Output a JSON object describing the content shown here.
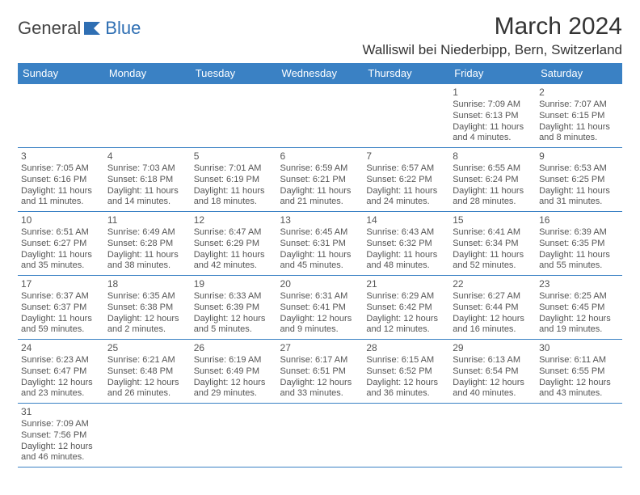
{
  "brand": {
    "part1": "General",
    "part2": "Blue"
  },
  "title": "March 2024",
  "location": "Walliswil bei Niederbipp, Bern, Switzerland",
  "colors": {
    "header_bg": "#3a81c4",
    "header_text": "#ffffff",
    "cell_border": "#3a81c4"
  },
  "day_headers": [
    "Sunday",
    "Monday",
    "Tuesday",
    "Wednesday",
    "Thursday",
    "Friday",
    "Saturday"
  ],
  "weeks": [
    [
      null,
      null,
      null,
      null,
      null,
      {
        "n": "1",
        "sr": "Sunrise: 7:09 AM",
        "ss": "Sunset: 6:13 PM",
        "dl": "Daylight: 11 hours and 4 minutes."
      },
      {
        "n": "2",
        "sr": "Sunrise: 7:07 AM",
        "ss": "Sunset: 6:15 PM",
        "dl": "Daylight: 11 hours and 8 minutes."
      }
    ],
    [
      {
        "n": "3",
        "sr": "Sunrise: 7:05 AM",
        "ss": "Sunset: 6:16 PM",
        "dl": "Daylight: 11 hours and 11 minutes."
      },
      {
        "n": "4",
        "sr": "Sunrise: 7:03 AM",
        "ss": "Sunset: 6:18 PM",
        "dl": "Daylight: 11 hours and 14 minutes."
      },
      {
        "n": "5",
        "sr": "Sunrise: 7:01 AM",
        "ss": "Sunset: 6:19 PM",
        "dl": "Daylight: 11 hours and 18 minutes."
      },
      {
        "n": "6",
        "sr": "Sunrise: 6:59 AM",
        "ss": "Sunset: 6:21 PM",
        "dl": "Daylight: 11 hours and 21 minutes."
      },
      {
        "n": "7",
        "sr": "Sunrise: 6:57 AM",
        "ss": "Sunset: 6:22 PM",
        "dl": "Daylight: 11 hours and 24 minutes."
      },
      {
        "n": "8",
        "sr": "Sunrise: 6:55 AM",
        "ss": "Sunset: 6:24 PM",
        "dl": "Daylight: 11 hours and 28 minutes."
      },
      {
        "n": "9",
        "sr": "Sunrise: 6:53 AM",
        "ss": "Sunset: 6:25 PM",
        "dl": "Daylight: 11 hours and 31 minutes."
      }
    ],
    [
      {
        "n": "10",
        "sr": "Sunrise: 6:51 AM",
        "ss": "Sunset: 6:27 PM",
        "dl": "Daylight: 11 hours and 35 minutes."
      },
      {
        "n": "11",
        "sr": "Sunrise: 6:49 AM",
        "ss": "Sunset: 6:28 PM",
        "dl": "Daylight: 11 hours and 38 minutes."
      },
      {
        "n": "12",
        "sr": "Sunrise: 6:47 AM",
        "ss": "Sunset: 6:29 PM",
        "dl": "Daylight: 11 hours and 42 minutes."
      },
      {
        "n": "13",
        "sr": "Sunrise: 6:45 AM",
        "ss": "Sunset: 6:31 PM",
        "dl": "Daylight: 11 hours and 45 minutes."
      },
      {
        "n": "14",
        "sr": "Sunrise: 6:43 AM",
        "ss": "Sunset: 6:32 PM",
        "dl": "Daylight: 11 hours and 48 minutes."
      },
      {
        "n": "15",
        "sr": "Sunrise: 6:41 AM",
        "ss": "Sunset: 6:34 PM",
        "dl": "Daylight: 11 hours and 52 minutes."
      },
      {
        "n": "16",
        "sr": "Sunrise: 6:39 AM",
        "ss": "Sunset: 6:35 PM",
        "dl": "Daylight: 11 hours and 55 minutes."
      }
    ],
    [
      {
        "n": "17",
        "sr": "Sunrise: 6:37 AM",
        "ss": "Sunset: 6:37 PM",
        "dl": "Daylight: 11 hours and 59 minutes."
      },
      {
        "n": "18",
        "sr": "Sunrise: 6:35 AM",
        "ss": "Sunset: 6:38 PM",
        "dl": "Daylight: 12 hours and 2 minutes."
      },
      {
        "n": "19",
        "sr": "Sunrise: 6:33 AM",
        "ss": "Sunset: 6:39 PM",
        "dl": "Daylight: 12 hours and 5 minutes."
      },
      {
        "n": "20",
        "sr": "Sunrise: 6:31 AM",
        "ss": "Sunset: 6:41 PM",
        "dl": "Daylight: 12 hours and 9 minutes."
      },
      {
        "n": "21",
        "sr": "Sunrise: 6:29 AM",
        "ss": "Sunset: 6:42 PM",
        "dl": "Daylight: 12 hours and 12 minutes."
      },
      {
        "n": "22",
        "sr": "Sunrise: 6:27 AM",
        "ss": "Sunset: 6:44 PM",
        "dl": "Daylight: 12 hours and 16 minutes."
      },
      {
        "n": "23",
        "sr": "Sunrise: 6:25 AM",
        "ss": "Sunset: 6:45 PM",
        "dl": "Daylight: 12 hours and 19 minutes."
      }
    ],
    [
      {
        "n": "24",
        "sr": "Sunrise: 6:23 AM",
        "ss": "Sunset: 6:47 PM",
        "dl": "Daylight: 12 hours and 23 minutes."
      },
      {
        "n": "25",
        "sr": "Sunrise: 6:21 AM",
        "ss": "Sunset: 6:48 PM",
        "dl": "Daylight: 12 hours and 26 minutes."
      },
      {
        "n": "26",
        "sr": "Sunrise: 6:19 AM",
        "ss": "Sunset: 6:49 PM",
        "dl": "Daylight: 12 hours and 29 minutes."
      },
      {
        "n": "27",
        "sr": "Sunrise: 6:17 AM",
        "ss": "Sunset: 6:51 PM",
        "dl": "Daylight: 12 hours and 33 minutes."
      },
      {
        "n": "28",
        "sr": "Sunrise: 6:15 AM",
        "ss": "Sunset: 6:52 PM",
        "dl": "Daylight: 12 hours and 36 minutes."
      },
      {
        "n": "29",
        "sr": "Sunrise: 6:13 AM",
        "ss": "Sunset: 6:54 PM",
        "dl": "Daylight: 12 hours and 40 minutes."
      },
      {
        "n": "30",
        "sr": "Sunrise: 6:11 AM",
        "ss": "Sunset: 6:55 PM",
        "dl": "Daylight: 12 hours and 43 minutes."
      }
    ],
    [
      {
        "n": "31",
        "sr": "Sunrise: 7:09 AM",
        "ss": "Sunset: 7:56 PM",
        "dl": "Daylight: 12 hours and 46 minutes."
      },
      null,
      null,
      null,
      null,
      null,
      null
    ]
  ]
}
